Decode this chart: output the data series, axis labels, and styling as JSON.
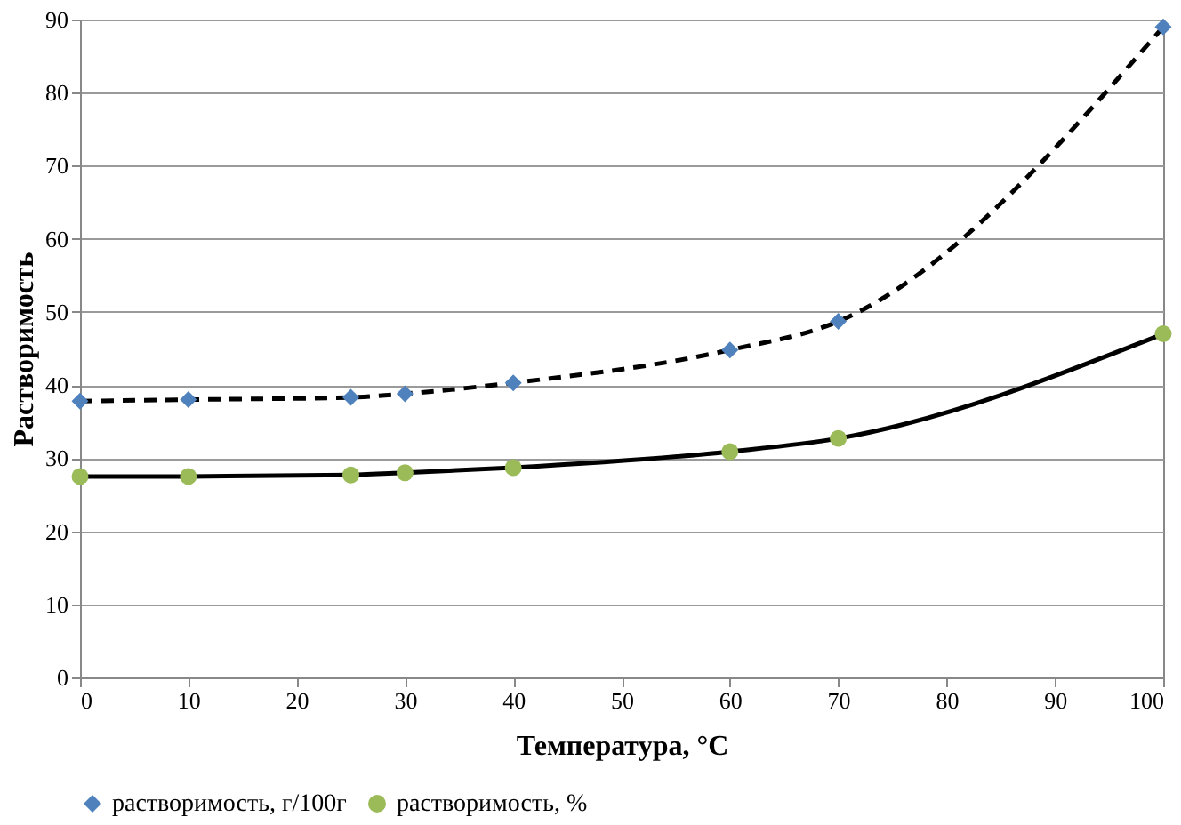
{
  "chart_data": {
    "type": "line",
    "xlabel": "Температура, °C",
    "ylabel": "Растворимость",
    "x": [
      0,
      10,
      25,
      30,
      40,
      60,
      70,
      100
    ],
    "series": [
      {
        "name": "растворимость, г/100г",
        "color": "#4f81bd",
        "marker": "diamond",
        "line_style": "dashed",
        "values": [
          37.8,
          38.0,
          38.3,
          38.8,
          40.3,
          44.8,
          48.7,
          89.0
        ]
      },
      {
        "name": "растворимость, %",
        "color": "#9bbb59",
        "marker": "circle",
        "line_style": "solid",
        "values": [
          27.5,
          27.5,
          27.7,
          28.0,
          28.7,
          30.9,
          32.7,
          47.0
        ]
      }
    ],
    "xlim": [
      0,
      100
    ],
    "xticks": [
      0,
      10,
      20,
      30,
      40,
      50,
      60,
      70,
      80,
      90,
      100
    ],
    "ylim": [
      0,
      90
    ],
    "yticks": [
      0,
      10,
      20,
      30,
      40,
      50,
      60,
      70,
      80,
      90
    ],
    "grid": "y",
    "legend": "bottom"
  }
}
